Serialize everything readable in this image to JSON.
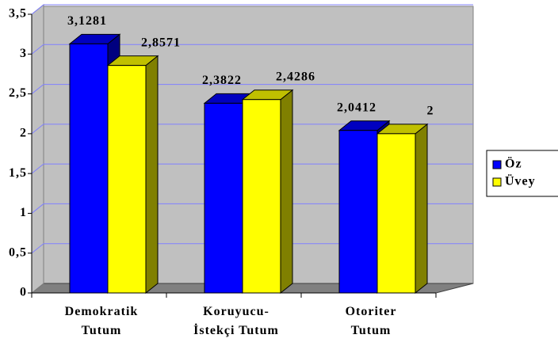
{
  "chart_data": {
    "type": "bar3d",
    "categories": [
      [
        "Demokratik",
        "Tutum"
      ],
      [
        "Koruyucu-",
        "İstekçi Tutum"
      ],
      [
        "Otoriter",
        "Tutum"
      ]
    ],
    "series": [
      {
        "name": "Öz",
        "color": "#0000ff",
        "values": [
          3.1281,
          2.3822,
          2.0412
        ],
        "value_labels": [
          "3,1281",
          "2,3822",
          "2,0412"
        ]
      },
      {
        "name": "Üvey",
        "color": "#ffff00",
        "values": [
          2.8571,
          2.4286,
          2
        ],
        "value_labels": [
          "2,8571",
          "2,4286",
          "2"
        ]
      }
    ],
    "ylim": [
      0,
      3.5
    ],
    "yticks": [
      0,
      {
        "value": 0.5,
        "label": "0,5"
      },
      1,
      {
        "value": 1.5,
        "label": "1,5"
      },
      2,
      {
        "value": 2.5,
        "label": "2,5"
      },
      3,
      {
        "value": 3.5,
        "label": "3,5"
      }
    ],
    "grid": true,
    "legend": "right"
  }
}
